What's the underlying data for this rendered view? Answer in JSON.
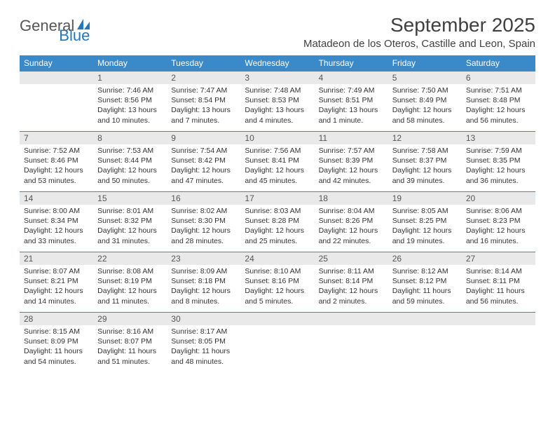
{
  "logo": {
    "text_general": "General",
    "text_blue": "Blue",
    "icon_color": "#2178bd"
  },
  "header": {
    "month_title": "September 2025",
    "location": "Matadeon de los Oteros, Castille and Leon, Spain"
  },
  "colors": {
    "header_bg": "#3a89c9",
    "header_text": "#ffffff",
    "daynum_bg": "#e9e9e9",
    "border": "#3a89c9"
  },
  "day_headers": [
    "Sunday",
    "Monday",
    "Tuesday",
    "Wednesday",
    "Thursday",
    "Friday",
    "Saturday"
  ],
  "weeks": [
    [
      {
        "num": "",
        "sunrise": "",
        "sunset": "",
        "daylight": ""
      },
      {
        "num": "1",
        "sunrise": "Sunrise: 7:46 AM",
        "sunset": "Sunset: 8:56 PM",
        "daylight": "Daylight: 13 hours and 10 minutes."
      },
      {
        "num": "2",
        "sunrise": "Sunrise: 7:47 AM",
        "sunset": "Sunset: 8:54 PM",
        "daylight": "Daylight: 13 hours and 7 minutes."
      },
      {
        "num": "3",
        "sunrise": "Sunrise: 7:48 AM",
        "sunset": "Sunset: 8:53 PM",
        "daylight": "Daylight: 13 hours and 4 minutes."
      },
      {
        "num": "4",
        "sunrise": "Sunrise: 7:49 AM",
        "sunset": "Sunset: 8:51 PM",
        "daylight": "Daylight: 13 hours and 1 minute."
      },
      {
        "num": "5",
        "sunrise": "Sunrise: 7:50 AM",
        "sunset": "Sunset: 8:49 PM",
        "daylight": "Daylight: 12 hours and 58 minutes."
      },
      {
        "num": "6",
        "sunrise": "Sunrise: 7:51 AM",
        "sunset": "Sunset: 8:48 PM",
        "daylight": "Daylight: 12 hours and 56 minutes."
      }
    ],
    [
      {
        "num": "7",
        "sunrise": "Sunrise: 7:52 AM",
        "sunset": "Sunset: 8:46 PM",
        "daylight": "Daylight: 12 hours and 53 minutes."
      },
      {
        "num": "8",
        "sunrise": "Sunrise: 7:53 AM",
        "sunset": "Sunset: 8:44 PM",
        "daylight": "Daylight: 12 hours and 50 minutes."
      },
      {
        "num": "9",
        "sunrise": "Sunrise: 7:54 AM",
        "sunset": "Sunset: 8:42 PM",
        "daylight": "Daylight: 12 hours and 47 minutes."
      },
      {
        "num": "10",
        "sunrise": "Sunrise: 7:56 AM",
        "sunset": "Sunset: 8:41 PM",
        "daylight": "Daylight: 12 hours and 45 minutes."
      },
      {
        "num": "11",
        "sunrise": "Sunrise: 7:57 AM",
        "sunset": "Sunset: 8:39 PM",
        "daylight": "Daylight: 12 hours and 42 minutes."
      },
      {
        "num": "12",
        "sunrise": "Sunrise: 7:58 AM",
        "sunset": "Sunset: 8:37 PM",
        "daylight": "Daylight: 12 hours and 39 minutes."
      },
      {
        "num": "13",
        "sunrise": "Sunrise: 7:59 AM",
        "sunset": "Sunset: 8:35 PM",
        "daylight": "Daylight: 12 hours and 36 minutes."
      }
    ],
    [
      {
        "num": "14",
        "sunrise": "Sunrise: 8:00 AM",
        "sunset": "Sunset: 8:34 PM",
        "daylight": "Daylight: 12 hours and 33 minutes."
      },
      {
        "num": "15",
        "sunrise": "Sunrise: 8:01 AM",
        "sunset": "Sunset: 8:32 PM",
        "daylight": "Daylight: 12 hours and 31 minutes."
      },
      {
        "num": "16",
        "sunrise": "Sunrise: 8:02 AM",
        "sunset": "Sunset: 8:30 PM",
        "daylight": "Daylight: 12 hours and 28 minutes."
      },
      {
        "num": "17",
        "sunrise": "Sunrise: 8:03 AM",
        "sunset": "Sunset: 8:28 PM",
        "daylight": "Daylight: 12 hours and 25 minutes."
      },
      {
        "num": "18",
        "sunrise": "Sunrise: 8:04 AM",
        "sunset": "Sunset: 8:26 PM",
        "daylight": "Daylight: 12 hours and 22 minutes."
      },
      {
        "num": "19",
        "sunrise": "Sunrise: 8:05 AM",
        "sunset": "Sunset: 8:25 PM",
        "daylight": "Daylight: 12 hours and 19 minutes."
      },
      {
        "num": "20",
        "sunrise": "Sunrise: 8:06 AM",
        "sunset": "Sunset: 8:23 PM",
        "daylight": "Daylight: 12 hours and 16 minutes."
      }
    ],
    [
      {
        "num": "21",
        "sunrise": "Sunrise: 8:07 AM",
        "sunset": "Sunset: 8:21 PM",
        "daylight": "Daylight: 12 hours and 14 minutes."
      },
      {
        "num": "22",
        "sunrise": "Sunrise: 8:08 AM",
        "sunset": "Sunset: 8:19 PM",
        "daylight": "Daylight: 12 hours and 11 minutes."
      },
      {
        "num": "23",
        "sunrise": "Sunrise: 8:09 AM",
        "sunset": "Sunset: 8:18 PM",
        "daylight": "Daylight: 12 hours and 8 minutes."
      },
      {
        "num": "24",
        "sunrise": "Sunrise: 8:10 AM",
        "sunset": "Sunset: 8:16 PM",
        "daylight": "Daylight: 12 hours and 5 minutes."
      },
      {
        "num": "25",
        "sunrise": "Sunrise: 8:11 AM",
        "sunset": "Sunset: 8:14 PM",
        "daylight": "Daylight: 12 hours and 2 minutes."
      },
      {
        "num": "26",
        "sunrise": "Sunrise: 8:12 AM",
        "sunset": "Sunset: 8:12 PM",
        "daylight": "Daylight: 11 hours and 59 minutes."
      },
      {
        "num": "27",
        "sunrise": "Sunrise: 8:14 AM",
        "sunset": "Sunset: 8:11 PM",
        "daylight": "Daylight: 11 hours and 56 minutes."
      }
    ],
    [
      {
        "num": "28",
        "sunrise": "Sunrise: 8:15 AM",
        "sunset": "Sunset: 8:09 PM",
        "daylight": "Daylight: 11 hours and 54 minutes."
      },
      {
        "num": "29",
        "sunrise": "Sunrise: 8:16 AM",
        "sunset": "Sunset: 8:07 PM",
        "daylight": "Daylight: 11 hours and 51 minutes."
      },
      {
        "num": "30",
        "sunrise": "Sunrise: 8:17 AM",
        "sunset": "Sunset: 8:05 PM",
        "daylight": "Daylight: 11 hours and 48 minutes."
      },
      {
        "num": "",
        "sunrise": "",
        "sunset": "",
        "daylight": ""
      },
      {
        "num": "",
        "sunrise": "",
        "sunset": "",
        "daylight": ""
      },
      {
        "num": "",
        "sunrise": "",
        "sunset": "",
        "daylight": ""
      },
      {
        "num": "",
        "sunrise": "",
        "sunset": "",
        "daylight": ""
      }
    ]
  ]
}
